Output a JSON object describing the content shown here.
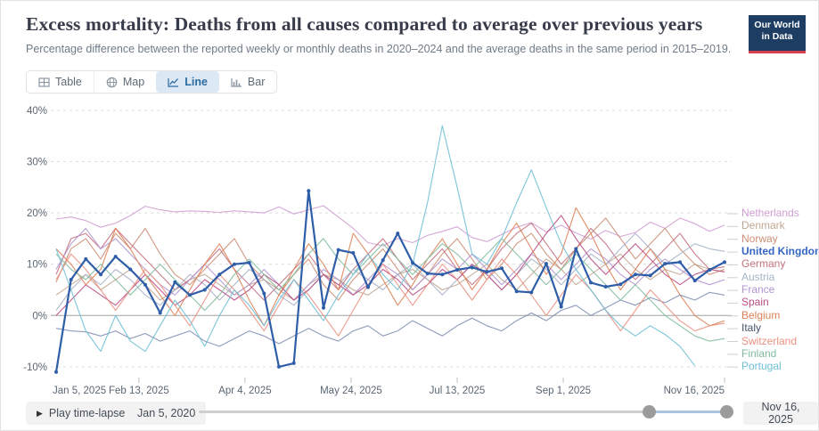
{
  "header": {
    "title": "Excess mortality: Deaths from all causes compared to average over previous years",
    "subtitle": "Percentage difference between the reported weekly or monthly deaths in 2020–2024 and the average deaths in the same period in 2015–2019.",
    "logo": {
      "line1": "Our World",
      "line2": "in Data",
      "bg_color": "#1d3d63",
      "accent_color": "#d8424a"
    }
  },
  "tabs": [
    {
      "id": "table",
      "label": "Table",
      "active": false
    },
    {
      "id": "map",
      "label": "Map",
      "active": false
    },
    {
      "id": "line",
      "label": "Line",
      "active": true
    },
    {
      "id": "bar",
      "label": "Bar",
      "active": false
    }
  ],
  "icons": {
    "play": "▶"
  },
  "footer": {
    "play_label": "Play time-lapse",
    "range_start_label": "Jan 5, 2020",
    "range_end_label": "Nov 16, 2025"
  },
  "chart_data": {
    "type": "line",
    "title": "Excess mortality: Deaths from all causes compared to average over previous years",
    "x_unit": "week",
    "x_start": "Jan 5, 2025",
    "x_end": "Nov 16, 2025",
    "ylim": [
      -13,
      42
    ],
    "grid": "dashed-horizontal",
    "legend_position": "right",
    "y_ticks": [
      {
        "value": 40,
        "label": "40%"
      },
      {
        "value": 30,
        "label": "30%"
      },
      {
        "value": 20,
        "label": "20%"
      },
      {
        "value": 10,
        "label": "10%"
      },
      {
        "value": 0,
        "label": "0%"
      },
      {
        "value": -10,
        "label": "-10%"
      }
    ],
    "x_ticks": [
      {
        "day": 0,
        "label": "Jan 5, 2025"
      },
      {
        "day": 39,
        "label": "Feb 13, 2025"
      },
      {
        "day": 89,
        "label": "Apr 4, 2025"
      },
      {
        "day": 139,
        "label": "May 24, 2025"
      },
      {
        "day": 189,
        "label": "Jul 13, 2025"
      },
      {
        "day": 239,
        "label": "Sep 1, 2025"
      },
      {
        "day": 315,
        "label": "Nov 16, 2025"
      }
    ],
    "series": [
      {
        "name": "Netherlands",
        "color": "#cf9ed2",
        "highlight": false,
        "values": [
          18.8,
          19.2,
          18.5,
          17.2,
          18.0,
          19.5,
          21.3,
          20.6,
          20.2,
          20.4,
          20.3,
          20.1,
          20.4,
          20.2,
          20.0,
          21.2,
          19.8,
          20.6,
          21.4,
          19.2,
          17.0,
          14.2,
          13.6,
          15.0,
          14.2,
          15.6,
          16.4,
          17.3,
          15.2,
          14.4,
          15.8,
          17.2,
          18.1,
          16.3,
          17.6,
          16.1,
          14.9,
          16.6,
          15.4,
          16.2,
          18.2,
          17.0,
          19.0,
          17.9,
          16.4,
          17.6
        ]
      },
      {
        "name": "Denmark",
        "color": "#c2a892",
        "highlight": false,
        "values": [
          4,
          6,
          8,
          5,
          7,
          9,
          6,
          3,
          5,
          7,
          8,
          6,
          4,
          6,
          7,
          5,
          3,
          6,
          8,
          7,
          5,
          4,
          6,
          8,
          9,
          7,
          5,
          6,
          8,
          10,
          7,
          5,
          8,
          11,
          9,
          6,
          8,
          10,
          12,
          9,
          7,
          9,
          8,
          10,
          9,
          8.5
        ]
      },
      {
        "name": "Norway",
        "color": "#cc8e74",
        "highlight": false,
        "values": [
          6.5,
          13,
          15,
          11,
          16,
          13,
          17,
          12,
          8,
          6,
          9,
          12,
          15,
          10,
          7,
          4,
          8,
          11,
          6,
          3,
          7,
          10,
          13,
          9,
          5,
          8,
          12,
          15,
          11,
          7,
          10,
          14,
          16,
          12,
          9,
          13,
          16,
          19,
          15,
          11,
          14,
          17,
          13,
          10,
          8,
          9
        ]
      },
      {
        "name": "United Kingdom",
        "color": "#2f5ea9",
        "label_color": "#3566c4",
        "highlight": true,
        "values": [
          -11,
          7,
          11,
          8,
          11.5,
          9,
          6,
          0.5,
          6.5,
          4,
          5,
          8,
          10,
          10.3,
          4.3,
          -10,
          -9.3,
          24.3,
          1.5,
          12.8,
          12.2,
          5.5,
          10.8,
          16,
          10.3,
          8.2,
          8,
          8.9,
          9.4,
          8.5,
          9.2,
          4.7,
          4.5,
          10.1,
          1.7,
          13,
          6.4,
          5.6,
          6.1,
          8,
          7.8,
          10.1,
          10.4,
          6.8,
          8.9,
          10.4
        ]
      },
      {
        "name": "Germany",
        "color": "#c4707f",
        "highlight": false,
        "values": [
          8,
          15,
          16,
          13,
          17,
          14,
          11,
          8,
          5,
          7,
          10,
          13,
          9,
          6,
          3,
          6,
          9,
          12,
          8,
          5,
          9,
          12,
          15,
          11,
          7,
          10,
          13,
          9,
          6,
          9,
          13,
          16,
          18,
          14,
          10,
          13,
          17,
          14,
          10,
          7,
          10,
          13,
          16,
          12,
          9,
          9.5
        ]
      },
      {
        "name": "Austria",
        "color": "#a6b2c8",
        "highlight": false,
        "values": [
          1,
          5,
          8,
          6,
          9,
          7,
          4,
          2,
          5,
          8,
          6,
          3,
          6,
          9,
          7,
          4,
          2,
          5,
          8,
          6,
          9,
          7,
          5,
          8,
          10,
          7,
          4,
          7,
          10,
          8,
          5,
          8,
          11,
          9,
          6,
          9,
          12,
          10,
          13,
          16,
          13,
          10,
          12,
          14,
          13,
          12.5
        ]
      },
      {
        "name": "France",
        "color": "#b295d3",
        "highlight": false,
        "values": [
          9,
          14,
          17,
          13,
          15,
          12,
          9,
          6,
          4,
          7,
          10,
          7,
          4,
          6,
          9,
          6,
          3,
          6,
          9,
          7,
          4,
          7,
          10,
          8,
          5,
          8,
          11,
          9,
          12,
          9,
          6,
          9,
          12,
          10,
          7,
          10,
          13,
          11,
          8,
          6,
          9,
          11,
          9,
          7,
          6,
          7
        ]
      },
      {
        "name": "Spain",
        "color": "#bb4f85",
        "highlight": false,
        "values": [
          0,
          3,
          6,
          4,
          2,
          5,
          8,
          5,
          2,
          4,
          7,
          5,
          3,
          5,
          8,
          6,
          3,
          5,
          8,
          6,
          4,
          6,
          9,
          7,
          4,
          6,
          9,
          7,
          10,
          8,
          5,
          8,
          12,
          16,
          19.5,
          15,
          11,
          8,
          11,
          14,
          11,
          8,
          6,
          8,
          9,
          8.5
        ]
      },
      {
        "name": "Belgium",
        "color": "#dd8257",
        "highlight": false,
        "values": [
          13,
          10,
          6,
          9,
          17,
          13,
          8,
          4,
          0,
          5,
          10,
          14,
          9,
          3,
          -2,
          4,
          9,
          14,
          10,
          5,
          16,
          12,
          7,
          2,
          6,
          11,
          15,
          10,
          5,
          9,
          14,
          18,
          13,
          8,
          12,
          21,
          16,
          10,
          5,
          9,
          13,
          9,
          4,
          0,
          -2,
          -1
        ]
      },
      {
        "name": "Italy",
        "color": "#8290b4",
        "label_color": "#46536b",
        "highlight": false,
        "values": [
          -2.5,
          -3,
          -3.2,
          -4,
          -3,
          -4.5,
          -3.5,
          -5,
          -4,
          -3,
          -5,
          -6,
          -4.5,
          -3,
          -4,
          -5.5,
          -4,
          -2.5,
          -4,
          -5,
          -3,
          -2,
          -4,
          -3,
          -1,
          -2.5,
          -4,
          -2,
          -0.5,
          -2,
          -3,
          -1,
          0.5,
          -1,
          1,
          2,
          0,
          1.5,
          3,
          2,
          3.5,
          2.5,
          4,
          3,
          4.5,
          4
        ]
      },
      {
        "name": "Switzerland",
        "color": "#eb9181",
        "highlight": false,
        "values": [
          7,
          12,
          9,
          5,
          1,
          5,
          9,
          6,
          2,
          -2,
          3,
          8,
          5,
          1,
          -3,
          2,
          7,
          4,
          0,
          -4,
          1,
          6,
          10,
          6,
          2,
          6,
          10,
          7,
          3,
          7,
          11,
          8,
          4,
          0,
          4,
          8,
          5,
          1,
          -3,
          1,
          5,
          2,
          -1,
          -3,
          -2,
          -1.5
        ]
      },
      {
        "name": "Finland",
        "color": "#7fbc9c",
        "highlight": false,
        "values": [
          12,
          9,
          7,
          10,
          7,
          4,
          7,
          10,
          7,
          4,
          1,
          4,
          8,
          11,
          8,
          5,
          8,
          12,
          15,
          11,
          8,
          11,
          14,
          11,
          8,
          11,
          14,
          12,
          9,
          12,
          15,
          12,
          9,
          6,
          9,
          12,
          9,
          6,
          3,
          6,
          3,
          0,
          -2,
          -4,
          -5,
          -4.5
        ]
      },
      {
        "name": "Portugal",
        "color": "#6fbfd6",
        "highlight": false,
        "values": [
          13,
          5,
          -3,
          -7,
          0,
          -5,
          -7,
          -2,
          3,
          -1,
          -6,
          0,
          5,
          2,
          -2,
          3,
          7,
          3,
          -1,
          4,
          8,
          12,
          8,
          5,
          10,
          22,
          37,
          25,
          12,
          10,
          15,
          22,
          28.4,
          21,
          14,
          9,
          5,
          1,
          -2,
          -4,
          -2,
          -3.7,
          -6,
          -9.8
        ]
      }
    ]
  }
}
